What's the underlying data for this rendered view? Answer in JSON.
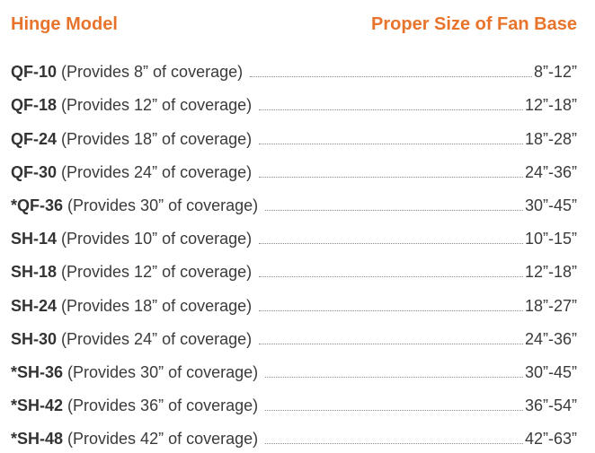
{
  "header": {
    "left": "Hinge Model",
    "right": "Proper Size of Fan Base"
  },
  "rows": [
    {
      "model": "QF-10",
      "desc": "(Provides 8” of coverage)",
      "size": "8”-12”"
    },
    {
      "model": "QF-18",
      "desc": "(Provides 12” of coverage)",
      "size": "12”-18”"
    },
    {
      "model": "QF-24",
      "desc": "(Provides 18” of coverage)",
      "size": "18”-28”"
    },
    {
      "model": "QF-30",
      "desc": "(Provides 24” of coverage)",
      "size": "24”-36”"
    },
    {
      "model": "*QF-36",
      "desc": "(Provides 30” of coverage)",
      "size": "30”-45”"
    },
    {
      "model": "SH-14",
      "desc": "(Provides 10” of coverage)",
      "size": "10”-15”"
    },
    {
      "model": "SH-18",
      "desc": "(Provides 12” of coverage)",
      "size": "12”-18”"
    },
    {
      "model": "SH-24",
      "desc": "(Provides 18” of coverage)",
      "size": "18”-27”"
    },
    {
      "model": "SH-30",
      "desc": "(Provides 24” of coverage)",
      "size": "24”-36”"
    },
    {
      "model": "*SH-36",
      "desc": "(Provides 30” of coverage)",
      "size": "30”-45”"
    },
    {
      "model": "*SH-42",
      "desc": "(Provides 36” of coverage)",
      "size": "36”-54”"
    },
    {
      "model": "*SH-48",
      "desc": "(Provides 42” of coverage)",
      "size": "42”-63”"
    }
  ],
  "colors": {
    "heading": "#e8742b",
    "text": "#3a3a3a"
  }
}
